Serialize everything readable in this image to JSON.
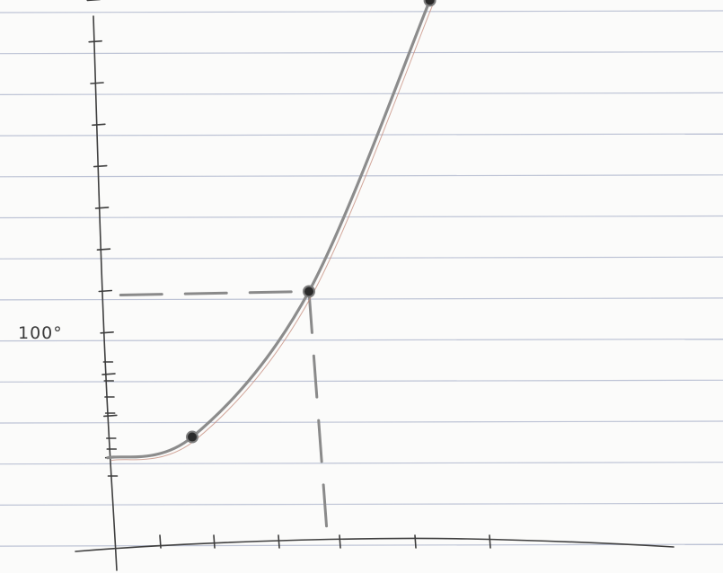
{
  "chart_data": {
    "type": "line",
    "title": "",
    "xlabel": "",
    "ylabel": "",
    "y_tick_labels": [
      "100°"
    ],
    "x_ticks": [
      1,
      2,
      3,
      4,
      5,
      6
    ],
    "y_ticks": [
      20,
      40,
      60,
      80,
      100,
      120,
      140,
      160,
      180,
      200,
      220,
      240
    ],
    "xlim": [
      0,
      6
    ],
    "ylim": [
      0,
      240
    ],
    "series": [
      {
        "x": [
          0,
          1.6,
          3.5,
          5.2
        ],
        "y": [
          20,
          30,
          100,
          240
        ],
        "style": "hand-drawn curve through plotted points",
        "color": "#8c8c8c"
      }
    ],
    "marked_points": [
      {
        "x": 1.6,
        "y": 30
      },
      {
        "x": 3.5,
        "y": 100
      },
      {
        "x": 5.2,
        "y": 240
      }
    ],
    "guide": {
      "x": 3.5,
      "y": 100,
      "style": "dashed",
      "color": "#8a8a8a"
    },
    "grid": true,
    "grid_style": "ruled notebook paper",
    "ruled_line_color": "#aeb6cc"
  }
}
